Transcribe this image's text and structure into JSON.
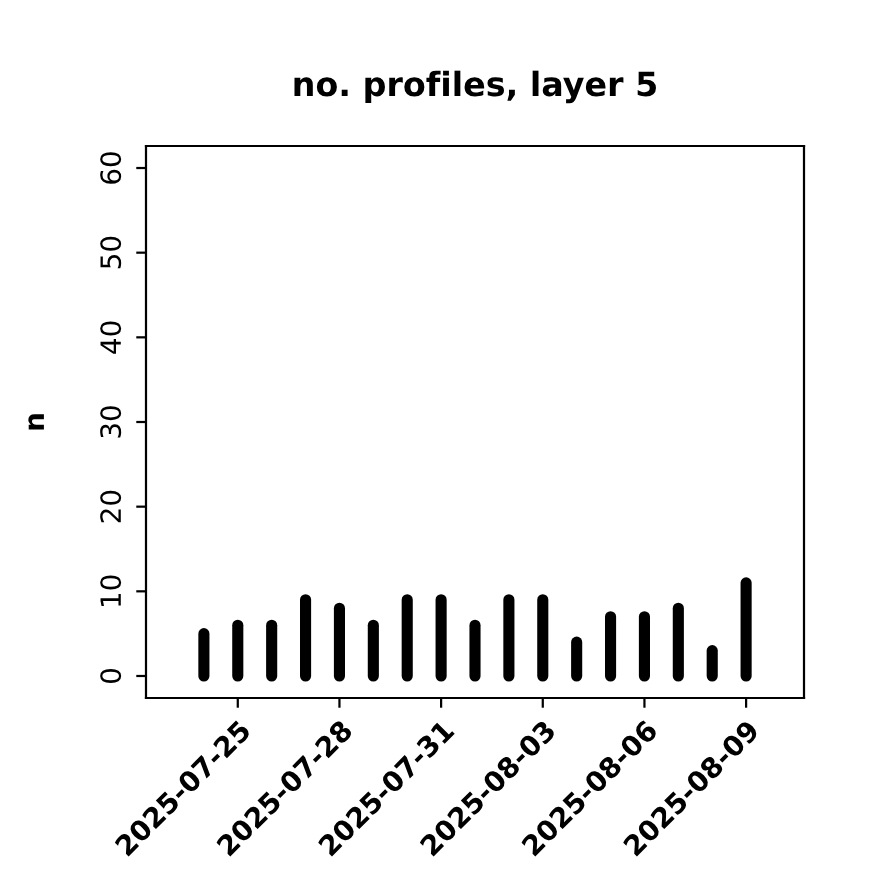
{
  "chart_data": {
    "type": "bar",
    "title": "no. profiles, layer 5",
    "ylabel": "n",
    "x": [
      "2025-07-24",
      "2025-07-25",
      "2025-07-26",
      "2025-07-27",
      "2025-07-28",
      "2025-07-29",
      "2025-07-30",
      "2025-07-31",
      "2025-08-01",
      "2025-08-02",
      "2025-08-03",
      "2025-08-04",
      "2025-08-05",
      "2025-08-06",
      "2025-08-07",
      "2025-08-08",
      "2025-08-09"
    ],
    "values": [
      5,
      6,
      6,
      9,
      8,
      6,
      9,
      9,
      6,
      9,
      9,
      4,
      7,
      7,
      8,
      3,
      11
    ],
    "color": "#000000",
    "xlim": [
      "2025-07-22T07:00",
      "2025-08-10T17:00"
    ],
    "xticks": [
      {
        "value": "2025-07-25",
        "label": "2025-07-25"
      },
      {
        "value": "2025-07-28",
        "label": "2025-07-28"
      },
      {
        "value": "2025-07-31",
        "label": "2025-07-31"
      },
      {
        "value": "2025-08-03",
        "label": "2025-08-03"
      },
      {
        "value": "2025-08-06",
        "label": "2025-08-06"
      },
      {
        "value": "2025-08-09",
        "label": "2025-08-09"
      }
    ],
    "ylim": [
      -2.6,
      62.6
    ],
    "yticks": [
      0,
      10,
      20,
      30,
      40,
      50,
      60
    ],
    "grid": false
  }
}
